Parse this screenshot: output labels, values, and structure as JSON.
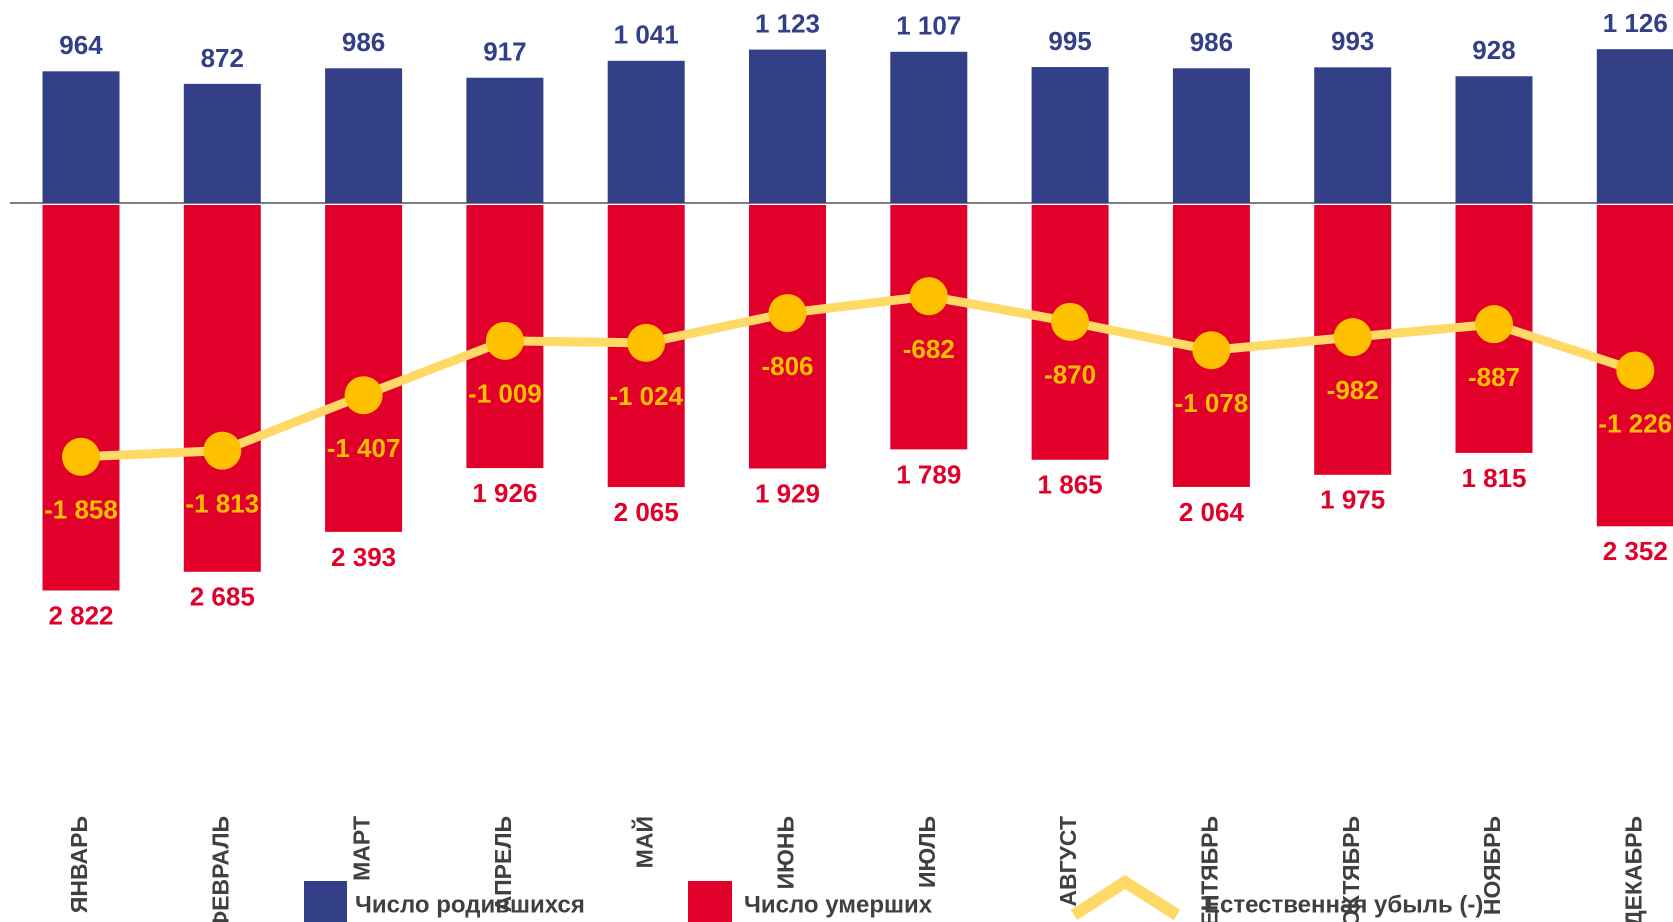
{
  "chart_data": {
    "type": "bar",
    "categories": [
      "ЯНВАРЬ",
      "ФЕВРАЛЬ",
      "МАРТ",
      "АПРЕЛЬ",
      "МАЙ",
      "ИЮНЬ",
      "ИЮЛЬ",
      "АВГУСТ",
      "СЕНТЯБРЬ",
      "ОКТЯБРЬ",
      "НОЯБРЬ",
      "ДЕКАБРЬ"
    ],
    "series": [
      {
        "name": "Число родившихся",
        "color": "#333f86",
        "values": [
          964,
          872,
          986,
          917,
          1041,
          1123,
          1107,
          995,
          986,
          993,
          928,
          1126
        ],
        "value_labels": [
          "964",
          "872",
          "986",
          "917",
          "1 041",
          "1 123",
          "1 107",
          "995",
          "986",
          "993",
          "928",
          "1 126"
        ]
      },
      {
        "name": "Число умерших",
        "color": "#e0002a",
        "values": [
          2822,
          2685,
          2393,
          1926,
          2065,
          1929,
          1789,
          1865,
          2064,
          1975,
          1815,
          2352
        ],
        "value_labels": [
          "2 822",
          "2 685",
          "2 393",
          "1 926",
          "2 065",
          "1 929",
          "1 789",
          "1 865",
          "2 064",
          "1 975",
          "1 815",
          "2 352"
        ]
      },
      {
        "name": "Естественная убыль (-)",
        "color": "#ffc000",
        "type": "line",
        "values": [
          -1858,
          -1813,
          -1407,
          -1009,
          -1024,
          -806,
          -682,
          -870,
          -1078,
          -982,
          -887,
          -1226
        ],
        "value_labels": [
          "-1 858",
          "-1 813",
          "-1 407",
          "-1 009",
          "-1 024",
          "-806",
          "-682",
          "-870",
          "-1 078",
          "-982",
          "-887",
          "-1 226"
        ]
      }
    ]
  }
}
